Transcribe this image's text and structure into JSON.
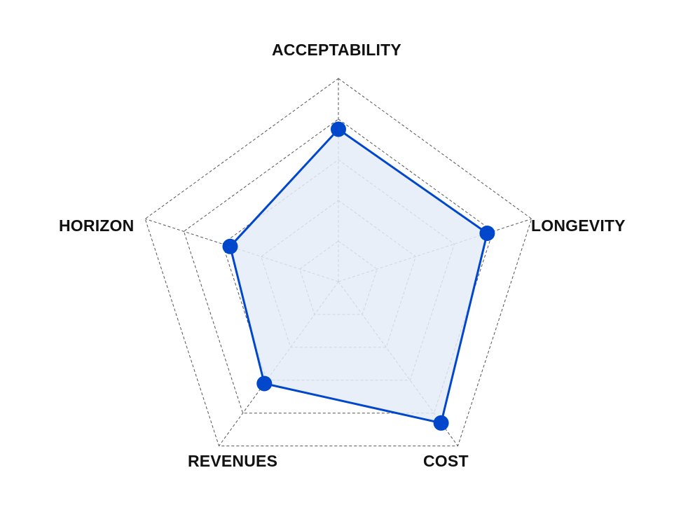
{
  "chart_data": {
    "type": "radar",
    "axes": [
      "ACCEPTABILITY",
      "LONGEVITY",
      "COST",
      "REVENUES",
      "HORIZON"
    ],
    "values": [
      0.75,
      0.77,
      0.86,
      0.62,
      0.56
    ],
    "range": [
      0,
      1
    ],
    "rings": 5,
    "grid": true,
    "grid_style": "dashed",
    "series_color": "#0047cc",
    "fill_color": "#e4ecf7",
    "grid_color": "#555555"
  }
}
